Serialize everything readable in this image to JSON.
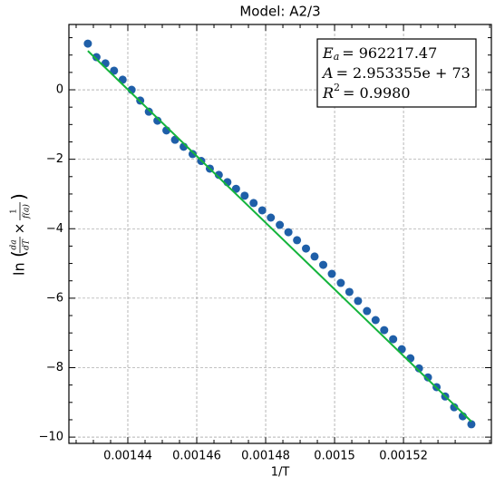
{
  "chart_data": {
    "type": "scatter",
    "title": "Model: A2/3",
    "xlabel": "1/T",
    "ylabel": {
      "fn": "ln",
      "num1": "da",
      "den1": "dT",
      "op": "×",
      "num2": "1",
      "den2": "f(a)"
    },
    "annotation": [
      {
        "symbol": "E",
        "sub": "a",
        "text": "= 962217.47"
      },
      {
        "symbol": "A",
        "text": "= 2.953355e + 73"
      },
      {
        "symbol": "R",
        "sup": "2",
        "text": "= 0.9980"
      }
    ],
    "xlim": [
      0.0014229,
      0.0015455
    ],
    "ylim": [
      -10.18,
      1.88
    ],
    "xticks": [
      0.00144,
      0.00146,
      0.00148,
      0.0015,
      0.00152
    ],
    "xticklabels_fix": null,
    "yticks": [
      {
        "value": -10,
        "label": "−10"
      },
      {
        "value": -8,
        "label": "−8"
      },
      {
        "value": -6,
        "label": "−6"
      },
      {
        "value": -4,
        "label": "−4"
      },
      {
        "value": -2,
        "label": "−2"
      },
      0
    ],
    "xminorticks": [
      0.001425,
      0.00143,
      0.001435,
      0.001445,
      0.00145,
      0.001455,
      0.001465,
      0.00147,
      0.001475,
      0.001485,
      0.00149,
      0.001495,
      0.001505,
      0.00151,
      0.001515,
      0.001525,
      0.00153,
      0.001535,
      0.001545
    ],
    "yminorticks": [
      -9.5,
      -9,
      -8.5,
      -7.5,
      -7,
      -6.5,
      -5.5,
      -5,
      -4.5,
      -3.5,
      -3,
      -2.5,
      -1.5,
      -1,
      -0.5,
      0.5,
      1,
      1.5
    ],
    "grid": true,
    "series": [
      {
        "type": "scatter",
        "color": "#1f5fa8",
        "x": [
          0.0014284,
          0.0014309,
          0.0014335,
          0.001436,
          0.0014385,
          0.0014411,
          0.0014436,
          0.0014461,
          0.0014486,
          0.0014512,
          0.0014537,
          0.0014562,
          0.0014588,
          0.0014613,
          0.0014638,
          0.0014664,
          0.0014689,
          0.0014714,
          0.0014739,
          0.0014765,
          0.001479,
          0.0014815,
          0.0014841,
          0.0014866,
          0.0014891,
          0.0014917,
          0.0014942,
          0.0014967,
          0.0014992,
          0.0015018,
          0.0015043,
          0.0015068,
          0.0015094,
          0.0015119,
          0.0015144,
          0.001517,
          0.0015195,
          0.001522,
          0.0015245,
          0.0015271,
          0.0015296,
          0.0015321,
          0.0015347,
          0.0015372,
          0.0015397
        ],
        "values": [
          1.33,
          0.94,
          0.76,
          0.55,
          0.29,
          0.0,
          -0.31,
          -0.63,
          -0.89,
          -1.17,
          -1.44,
          -1.64,
          -1.85,
          -2.05,
          -2.27,
          -2.45,
          -2.66,
          -2.85,
          -3.05,
          -3.26,
          -3.47,
          -3.68,
          -3.89,
          -4.1,
          -4.33,
          -4.57,
          -4.8,
          -5.04,
          -5.3,
          -5.56,
          -5.82,
          -6.08,
          -6.37,
          -6.63,
          -6.92,
          -7.18,
          -7.47,
          -7.73,
          -8.02,
          -8.28,
          -8.56,
          -8.83,
          -9.14,
          -9.4,
          -9.63
        ]
      },
      {
        "type": "line",
        "color": "#14b43c",
        "x": [
          0.0014284,
          0.0015397
        ],
        "values": [
          1.12,
          -9.55
        ]
      }
    ]
  }
}
